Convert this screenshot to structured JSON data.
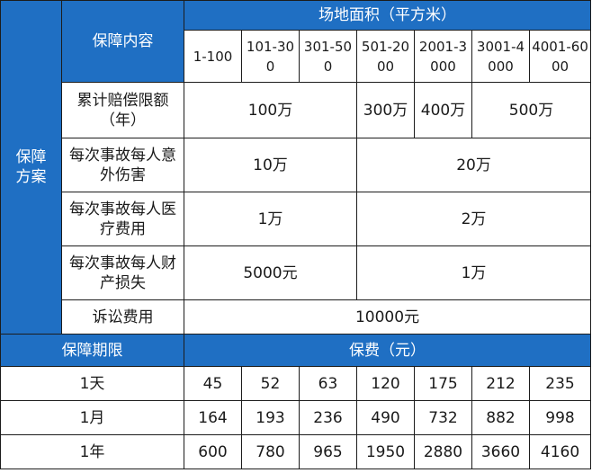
{
  "header": {
    "plan_label": "保障方案",
    "coverage_content": "保障内容",
    "area_title": "场地面积（平方米）",
    "area_ranges": [
      "1-100",
      "101-300",
      "301-500",
      "501-2000",
      "2001-3000",
      "3001-4000",
      "4001-6000"
    ]
  },
  "coverage": {
    "cumulative": {
      "label": "累计赔偿限额（年）",
      "values": [
        "100万",
        "300万",
        "400万",
        "500万"
      ]
    },
    "accident_injury": {
      "label": "每次事故每人意外伤害",
      "values": [
        "10万",
        "20万"
      ]
    },
    "medical": {
      "label": "每次事故每人医疗费用",
      "values": [
        "1万",
        "2万"
      ]
    },
    "property": {
      "label": "每次事故每人财产损失",
      "values": [
        "5000元",
        "1万"
      ]
    },
    "litigation": {
      "label": "诉讼费用",
      "value": "10000元"
    }
  },
  "premium": {
    "period_label": "保障期限",
    "premium_label": "保费（元）",
    "rows": [
      {
        "period": "1天",
        "values": [
          "45",
          "52",
          "63",
          "120",
          "175",
          "212",
          "235"
        ]
      },
      {
        "period": "1月",
        "values": [
          "164",
          "193",
          "236",
          "490",
          "732",
          "882",
          "998"
        ]
      },
      {
        "period": "1年",
        "values": [
          "600",
          "780",
          "965",
          "1950",
          "2880",
          "3660",
          "4160"
        ]
      }
    ]
  },
  "colors": {
    "header_blue": "#1f6fc3",
    "border": "#1c1c1c"
  }
}
